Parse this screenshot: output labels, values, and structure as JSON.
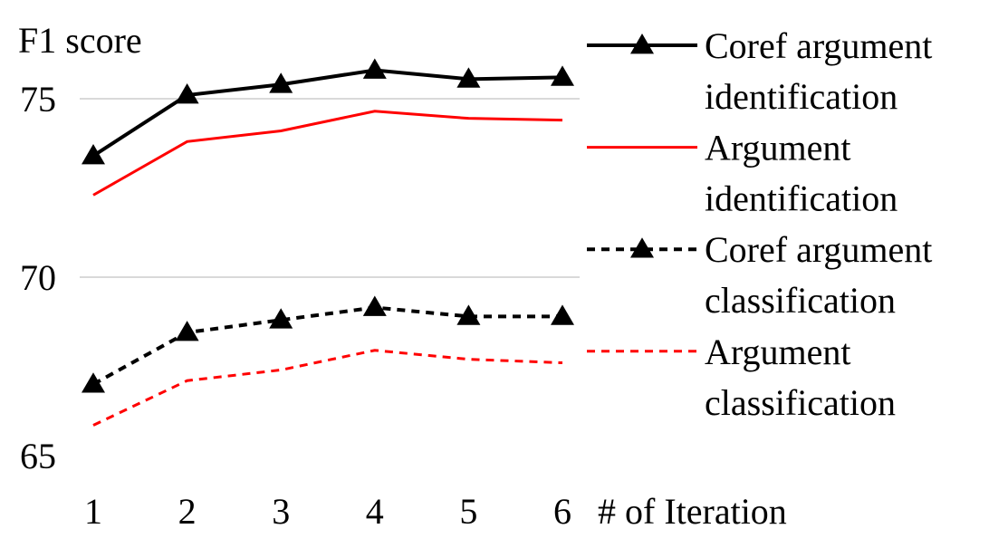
{
  "chart_data": {
    "type": "line",
    "xlabel": "# of Iteration",
    "ylabel": "F1 score",
    "categories": [
      "1",
      "2",
      "3",
      "4",
      "5",
      "6"
    ],
    "ylim": [
      65,
      76.5
    ],
    "yticks": [
      "65",
      "70",
      "75"
    ],
    "grid": true,
    "legend_position": "right",
    "series": [
      {
        "name": "Coref argument identification",
        "legend_lines": [
          "Coref argument",
          "identification"
        ],
        "values": [
          73.4,
          75.1,
          75.4,
          75.8,
          75.55,
          75.6
        ],
        "color": "#000000",
        "line_style": "solid",
        "marker": "triangle"
      },
      {
        "name": "Argument identification",
        "legend_lines": [
          "Argument",
          "identification"
        ],
        "values": [
          72.3,
          73.8,
          74.1,
          74.65,
          74.45,
          74.4
        ],
        "color": "#ff0000",
        "line_style": "solid",
        "marker": "none"
      },
      {
        "name": "Coref argument classification",
        "legend_lines": [
          "Coref argument",
          "classification"
        ],
        "values": [
          67.0,
          68.45,
          68.8,
          69.15,
          68.9,
          68.9
        ],
        "color": "#000000",
        "line_style": "dashed",
        "marker": "triangle"
      },
      {
        "name": "Argument classification",
        "legend_lines": [
          "Argument",
          "classification"
        ],
        "values": [
          65.85,
          67.1,
          67.4,
          67.95,
          67.7,
          67.6
        ],
        "color": "#ff0000",
        "line_style": "dashed",
        "marker": "none"
      }
    ]
  }
}
